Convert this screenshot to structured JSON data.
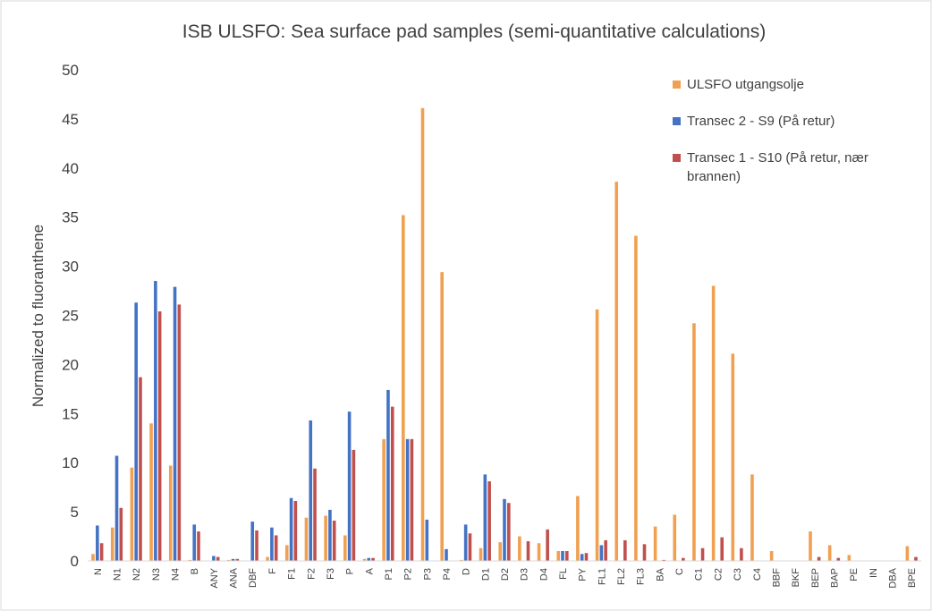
{
  "chart_data": {
    "type": "bar",
    "title": "ISB ULSFO: Sea surface pad samples (semi-quantitative calculations)",
    "y_label": "Normalized to fluoranthene",
    "categories": [
      "N",
      "N1",
      "N2",
      "N3",
      "N4",
      "B",
      "ANY",
      "ANA",
      "DBF",
      "F",
      "F1",
      "F2",
      "F3",
      "P",
      "A",
      "P1",
      "P2",
      "P3",
      "P4",
      "D",
      "D1",
      "D2",
      "D3",
      "D4",
      "FL",
      "PY",
      "FL1",
      "FL2",
      "FL3",
      "BA",
      "C",
      "C1",
      "C2",
      "C3",
      "C4",
      "BBF",
      "BKF",
      "BEP",
      "BAP",
      "PE",
      "IN",
      "DBA",
      "BPE"
    ],
    "series": [
      {
        "name": "ULSFO utgangsolje",
        "color": "#f0a050",
        "values": [
          0.7,
          3.4,
          9.5,
          14.0,
          9.7,
          0.1,
          0,
          0.1,
          0,
          0.4,
          1.6,
          4.4,
          4.6,
          2.6,
          0.2,
          12.4,
          35.2,
          46.1,
          29.4,
          0.1,
          1.3,
          1.9,
          2.5,
          1.8,
          1.0,
          6.6,
          25.6,
          38.6,
          33.1,
          3.5,
          4.7,
          24.2,
          28.0,
          21.1,
          8.8,
          1.0,
          0,
          3.0,
          1.6,
          0.6,
          0,
          0,
          1.5
        ]
      },
      {
        "name": "Transec 2 - S9 (På retur)",
        "color": "#4472c4",
        "values": [
          3.6,
          10.7,
          26.3,
          28.5,
          27.9,
          3.7,
          0.5,
          0.2,
          4.0,
          3.4,
          6.4,
          14.3,
          5.2,
          15.2,
          0.3,
          17.4,
          12.4,
          4.2,
          1.2,
          3.7,
          8.8,
          6.3,
          0,
          0,
          1.0,
          0.7,
          1.6,
          0,
          0,
          0,
          0,
          0,
          0,
          0,
          0,
          0,
          0,
          0,
          0,
          0,
          0,
          0,
          0
        ]
      },
      {
        "name": "Transec 1 - S10 (På retur, nær brannen)",
        "color": "#c0504d",
        "values": [
          1.8,
          5.4,
          18.7,
          25.4,
          26.1,
          3.0,
          0.4,
          0.2,
          3.1,
          2.6,
          6.1,
          9.4,
          4.1,
          11.3,
          0.3,
          15.7,
          12.4,
          0,
          0,
          2.8,
          8.1,
          5.9,
          2.0,
          3.2,
          1.0,
          0.8,
          2.1,
          2.1,
          1.7,
          0.1,
          0.3,
          1.3,
          2.4,
          1.3,
          0,
          0,
          0,
          0.4,
          0.3,
          0,
          0,
          0,
          0.4
        ]
      }
    ],
    "ylim": [
      0,
      50
    ],
    "yticks": [
      0,
      5,
      10,
      15,
      20,
      25,
      30,
      35,
      40,
      45,
      50
    ],
    "grid": false
  }
}
